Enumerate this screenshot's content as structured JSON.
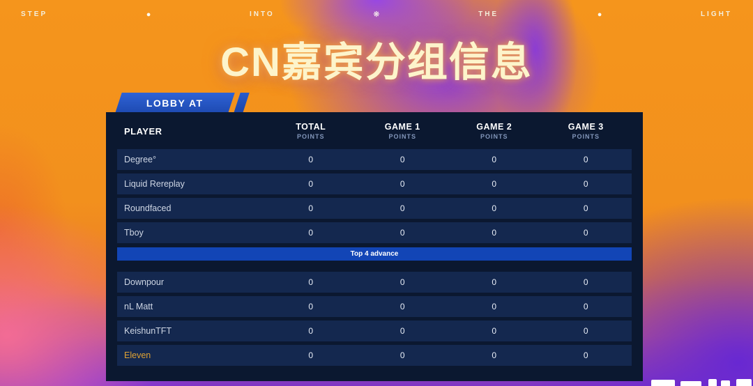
{
  "top_bar": {
    "items": [
      {
        "type": "text",
        "label": "STEP"
      },
      {
        "type": "dot",
        "glyph": "●"
      },
      {
        "type": "text",
        "label": "INTO"
      },
      {
        "type": "sparkle",
        "glyph": "❋"
      },
      {
        "type": "text",
        "label": "THE"
      },
      {
        "type": "dot",
        "glyph": "●"
      },
      {
        "type": "text",
        "label": "LIGHT"
      }
    ]
  },
  "title": "CN嘉宾分组信息",
  "lobby_tab": {
    "label": "LOBBY AT"
  },
  "table": {
    "player_header": "PLAYER",
    "columns": [
      {
        "label": "TOTAL",
        "sub": "POINTS"
      },
      {
        "label": "GAME 1",
        "sub": "POINTS"
      },
      {
        "label": "GAME 2",
        "sub": "POINTS"
      },
      {
        "label": "GAME 3",
        "sub": "POINTS"
      }
    ],
    "group1": [
      {
        "player": "Degree°",
        "highlight": false,
        "values": [
          "0",
          "0",
          "0",
          "0"
        ]
      },
      {
        "player": "Liquid Rereplay",
        "highlight": false,
        "values": [
          "0",
          "0",
          "0",
          "0"
        ]
      },
      {
        "player": "Roundfaced",
        "highlight": false,
        "values": [
          "0",
          "0",
          "0",
          "0"
        ]
      },
      {
        "player": "Tboy",
        "highlight": false,
        "values": [
          "0",
          "0",
          "0",
          "0"
        ]
      }
    ],
    "divider": "Top 4 advance",
    "group2": [
      {
        "player": "Downpour",
        "highlight": false,
        "values": [
          "0",
          "0",
          "0",
          "0"
        ]
      },
      {
        "player": "nL Matt",
        "highlight": false,
        "values": [
          "0",
          "0",
          "0",
          "0"
        ]
      },
      {
        "player": "KeishunTFT",
        "highlight": false,
        "values": [
          "0",
          "0",
          "0",
          "0"
        ]
      },
      {
        "player": "Eleven",
        "highlight": true,
        "values": [
          "0",
          "0",
          "0",
          "0"
        ]
      }
    ]
  },
  "colors": {
    "background_orange": "#f5951c",
    "background_purple": "#7e35c6",
    "background_pink": "#f56c96",
    "panel": "#0b1830",
    "row": "#14284f",
    "tab_blue": "#2f63d6",
    "advance_blue": "#1245b6",
    "title_cream": "#fdf4cb",
    "highlight_orange": "#dfa233"
  }
}
